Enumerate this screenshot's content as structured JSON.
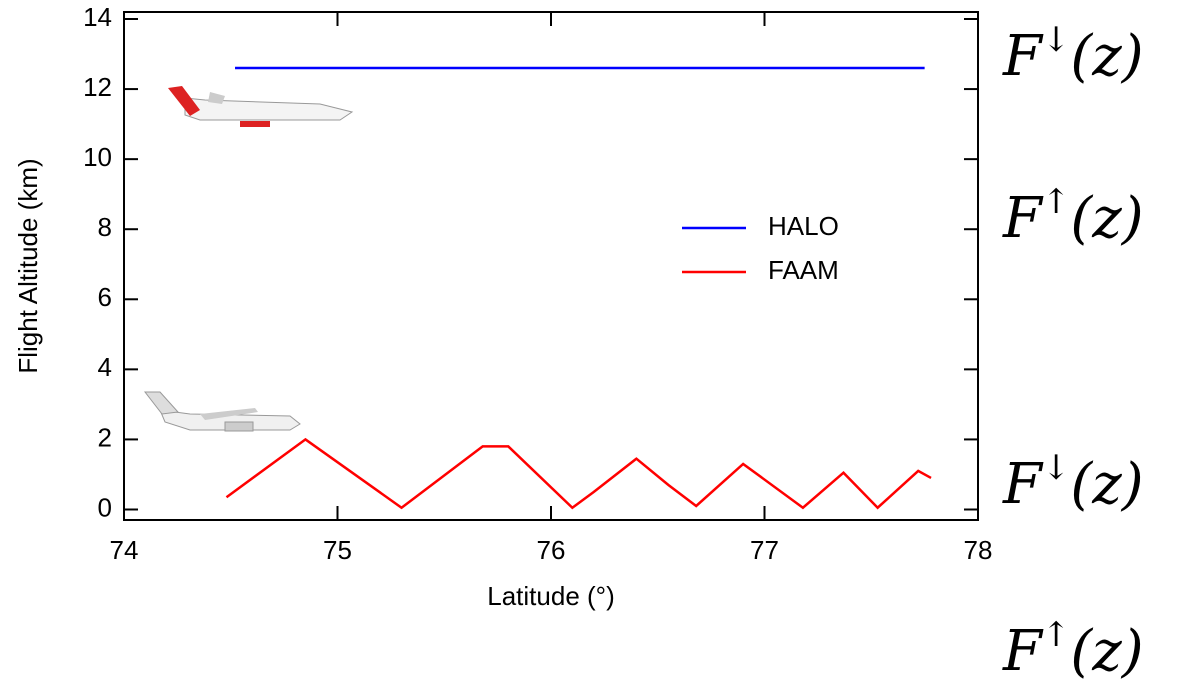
{
  "chart_data": {
    "type": "line",
    "xlabel": "Latitude (°)",
    "ylabel": "Flight Altitude (km)",
    "xlim": [
      74,
      78
    ],
    "ylim": [
      -0.3,
      14.2
    ],
    "xticks": [
      74,
      75,
      76,
      77,
      78
    ],
    "yticks": [
      0,
      2,
      4,
      6,
      8,
      10,
      12,
      14
    ],
    "legend": "upper right",
    "series": [
      {
        "name": "HALO",
        "color": "#0000ff",
        "x": [
          74.52,
          77.75
        ],
        "values": [
          12.6,
          12.6
        ]
      },
      {
        "name": "FAAM",
        "color": "#ff0000",
        "x": [
          74.48,
          74.85,
          75.3,
          75.68,
          75.8,
          76.1,
          76.2,
          76.4,
          76.55,
          76.68,
          76.9,
          77.18,
          77.37,
          77.53,
          77.72,
          77.78
        ],
        "values": [
          0.35,
          2.0,
          0.05,
          1.8,
          1.8,
          0.05,
          0.5,
          1.45,
          0.7,
          0.1,
          1.3,
          0.05,
          1.05,
          0.05,
          1.1,
          0.9
        ]
      }
    ],
    "annotations": [
      {
        "base": "F",
        "arrow": "↓",
        "arg": "(z)"
      },
      {
        "base": "F",
        "arrow": "↑",
        "arg": "(z)"
      },
      {
        "base": "F",
        "arrow": "↓",
        "arg": "(z)"
      },
      {
        "base": "F",
        "arrow": "↑",
        "arg": "(z)"
      }
    ]
  }
}
